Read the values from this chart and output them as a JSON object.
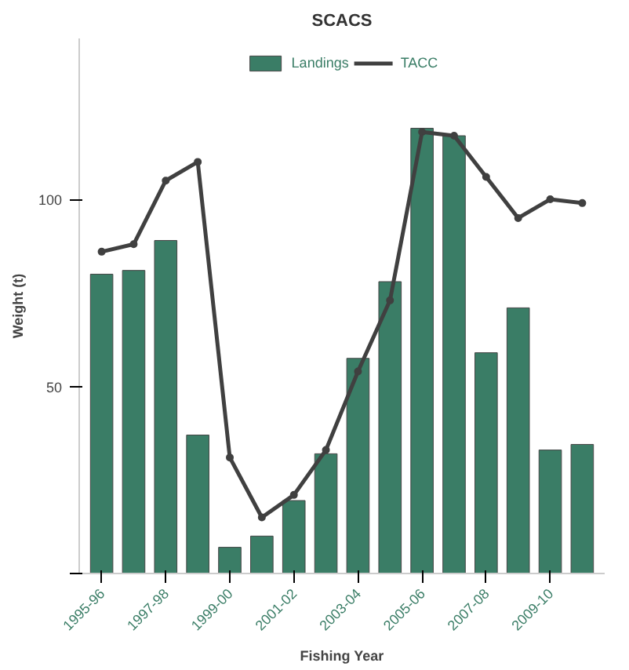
{
  "chart_data": {
    "type": "bar",
    "title": "SCACS",
    "xlabel": "Fishing Year",
    "ylabel": "Weight (t)",
    "categories": [
      "1995-96",
      null,
      "1997-98",
      null,
      "1999-00",
      null,
      "2001-02",
      null,
      "2003-04",
      null,
      "2005-06",
      null,
      "2007-08",
      null,
      "2009-10",
      null
    ],
    "series": [
      {
        "name": "Landings",
        "color": "#3a7d66",
        "values": [
          80,
          81,
          89,
          37,
          7,
          10,
          19.5,
          32,
          57.5,
          78,
          119,
          117,
          59,
          71,
          33,
          34.5
        ]
      },
      {
        "name": "TACC",
        "type": "line",
        "color": "#404040",
        "marker": "circle",
        "values": [
          86,
          88,
          105,
          110,
          31,
          15,
          21,
          33,
          54,
          73,
          118,
          117,
          106,
          95,
          100,
          99
        ]
      }
    ],
    "ylim": [
      0,
      143
    ],
    "yticks": [
      {
        "value": 0,
        "label": null
      },
      50,
      100
    ],
    "grid": false,
    "legend": "top"
  }
}
